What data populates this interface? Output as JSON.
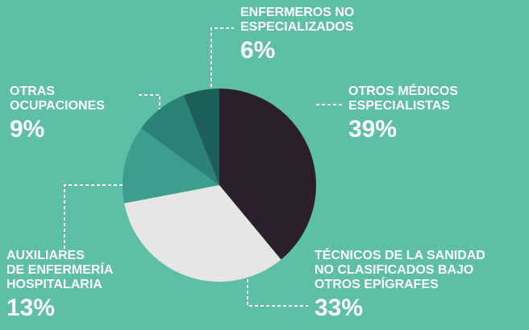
{
  "chart_data": {
    "type": "pie",
    "categories": [
      "OTROS MÉDICOS\nESPECIALISTAS",
      "TÉCNICOS DE LA SANIDAD\nNO CLASIFICADOS BAJO\nOTROS EPÍGRAFES",
      "AUXILIARES\nDE ENFERMERÍA\nHOSPITALARIA",
      "OTRAS\nOCUPACIONES",
      "ENFERMEROS NO\nESPECIALIZADOS"
    ],
    "values": [
      39,
      33,
      13,
      9,
      6
    ],
    "value_labels": [
      "39%",
      "33%",
      "13%",
      "9%",
      "6%"
    ],
    "colors": [
      "#2b1f2c",
      "#e6e6e4",
      "#3c9f8d",
      "#2b8279",
      "#1c5e58"
    ]
  }
}
